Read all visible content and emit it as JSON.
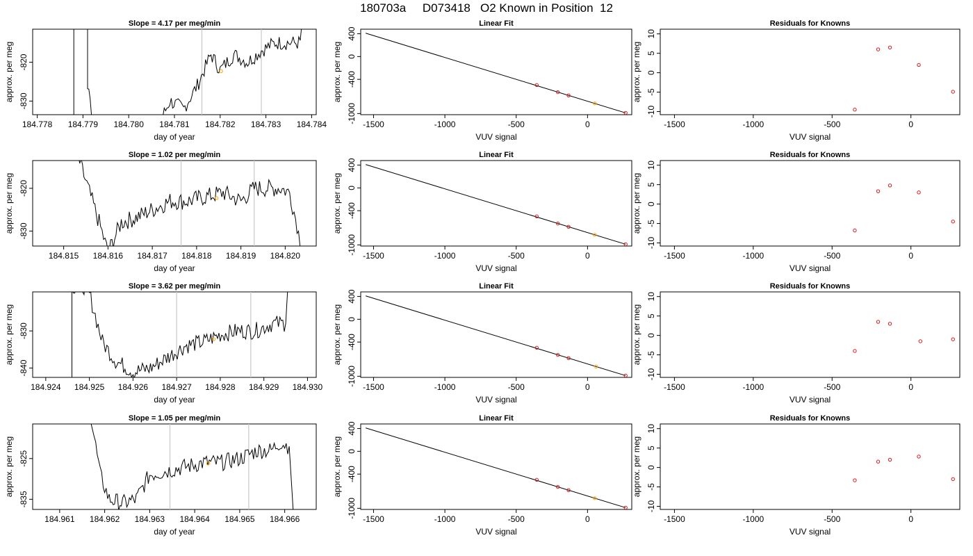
{
  "title": "180703a     D073418   O2 Known in Position  12",
  "chart_data": [
    {
      "type": "line",
      "panel": "time-series",
      "row": 1,
      "title": "Slope =  4.17  per meg/min",
      "xlabel": "day of year",
      "ylabel": "approx. per meg",
      "xlim": [
        184.7779,
        184.7841
      ],
      "ylim": [
        -833.5,
        -811.5
      ],
      "xticks": [
        "184.778",
        "184.779",
        "184.780",
        "184.781",
        "184.782",
        "184.783",
        "184.784"
      ],
      "yticks": [
        "-820",
        "-830"
      ],
      "vlines": [
        184.7816,
        184.7829
      ],
      "marker": {
        "x": 184.78202,
        "y": -822.3,
        "color": "#ffa500"
      },
      "trace_x": [
        184.7788,
        184.7788,
        184.7791,
        184.7791,
        184.7793,
        184.7805,
        184.7809,
        184.7812,
        184.7815,
        184.7818,
        184.782,
        184.7823,
        184.7826,
        184.7829,
        184.7832,
        184.7835,
        184.78375,
        184.7838
      ],
      "trace_y": [
        -840,
        -808,
        -808,
        -826,
        -840,
        -840,
        -830,
        -832,
        -826,
        -818,
        -822,
        -818,
        -820,
        -817,
        -815,
        -815,
        -815,
        -808
      ],
      "noise": 1.2
    },
    {
      "type": "line",
      "panel": "fit",
      "row": 1,
      "title": "Linear Fit",
      "xlabel": "VUV signal",
      "ylabel": "approx. per meg",
      "xlim": [
        -1590,
        310
      ],
      "ylim": [
        -1020,
        480
      ],
      "xticks": [
        -1500,
        -1000,
        -500,
        0
      ],
      "yticks": [
        400,
        0,
        -400,
        -1000
      ],
      "line": {
        "x": [
          -1555,
          267
        ],
        "y": [
          410,
          -989
        ]
      },
      "points": {
        "x": [
          -356,
          -208,
          -133,
          50,
          267
        ],
        "y": [
          -500,
          -625,
          -682,
          -822,
          -989
        ]
      },
      "highlight_index": 3
    },
    {
      "type": "scatter",
      "panel": "residuals",
      "row": 1,
      "title": "Residuals for Knowns",
      "xlabel": "VUV signal",
      "ylabel": "approx. per meg",
      "xlim": [
        -1590,
        310
      ],
      "ylim": [
        -10.8,
        11.2
      ],
      "xticks": [
        -1500,
        -1000,
        -500,
        0
      ],
      "yticks": [
        10,
        5,
        0,
        -5,
        -10
      ],
      "points": {
        "x": [
          -356,
          -208,
          -133,
          50,
          267
        ],
        "y": [
          -9.5,
          6.0,
          6.5,
          2.0,
          -4.9
        ]
      }
    },
    {
      "type": "line",
      "panel": "time-series",
      "row": 2,
      "title": "Slope =  1.02  per meg/min",
      "xlabel": "day of year",
      "ylabel": "approx. per meg",
      "xlim": [
        184.8143,
        184.8207
      ],
      "ylim": [
        -833.5,
        -813.5
      ],
      "xticks": [
        "184.815",
        "184.816",
        "184.817",
        "184.818",
        "184.819",
        "184.820"
      ],
      "yticks": [
        "-820",
        "-830"
      ],
      "vlines": [
        184.81765,
        184.8193
      ],
      "marker": {
        "x": 184.81845,
        "y": -822.3,
        "color": "#ffa500"
      },
      "trace_x": [
        184.8153,
        184.8158,
        184.816,
        184.8163,
        184.8166,
        184.817,
        184.8174,
        184.8178,
        184.8182,
        184.8186,
        184.819,
        184.8193,
        184.8196,
        184.8199,
        184.8201,
        184.8203,
        184.8204
      ],
      "trace_y": [
        -812,
        -828,
        -835,
        -828,
        -827,
        -825,
        -823,
        -823,
        -822,
        -821,
        -823,
        -820,
        -820,
        -820,
        -821,
        -830,
        -840
      ],
      "noise": 1.3
    },
    {
      "type": "line",
      "panel": "fit",
      "row": 2,
      "title": "Linear Fit",
      "xlabel": "VUV signal",
      "ylabel": "approx. per meg",
      "xlim": [
        -1590,
        310
      ],
      "ylim": [
        -1020,
        480
      ],
      "xticks": [
        -1500,
        -1000,
        -500,
        0
      ],
      "yticks": [
        400,
        0,
        -400,
        -1000
      ],
      "line": {
        "x": [
          -1555,
          267
        ],
        "y": [
          410,
          -989
        ]
      },
      "points": {
        "x": [
          -356,
          -208,
          -133,
          50,
          267
        ],
        "y": [
          -500,
          -625,
          -682,
          -822,
          -989
        ]
      },
      "highlight_index": 3
    },
    {
      "type": "scatter",
      "panel": "residuals",
      "row": 2,
      "title": "Residuals for Knowns",
      "xlabel": "VUV signal",
      "ylabel": "approx. per meg",
      "xlim": [
        -1590,
        310
      ],
      "ylim": [
        -10.8,
        11.2
      ],
      "xticks": [
        -1500,
        -1000,
        -500,
        0
      ],
      "yticks": [
        10,
        5,
        0,
        -5,
        -10
      ],
      "points": {
        "x": [
          -356,
          -208,
          -133,
          50,
          267
        ],
        "y": [
          -6.8,
          3.3,
          4.8,
          3.0,
          -4.5
        ]
      }
    },
    {
      "type": "line",
      "panel": "time-series",
      "row": 3,
      "title": "Slope =  3.62  per meg/min",
      "xlabel": "day of year",
      "ylabel": "approx. per meg",
      "xlim": [
        184.9237,
        184.9302
      ],
      "ylim": [
        -842.5,
        -819.5
      ],
      "xticks": [
        "184.924",
        "184.925",
        "184.926",
        "184.927",
        "184.928",
        "184.929",
        "184.930"
      ],
      "yticks": [
        "-830",
        "-840"
      ],
      "vlines": [
        184.927,
        184.9287
      ],
      "marker": {
        "x": 184.92785,
        "y": -832.2,
        "color": "#ffa500"
      },
      "trace_x": [
        184.9246,
        184.9246,
        184.925,
        184.925,
        184.9253,
        184.9256,
        184.926,
        184.9264,
        184.9268,
        184.9272,
        184.9276,
        184.928,
        184.9284,
        184.9288,
        184.9292,
        184.9295,
        184.92955
      ],
      "trace_y": [
        -845,
        -818,
        -818,
        -820,
        -833,
        -838,
        -841,
        -840,
        -837,
        -834,
        -833,
        -831,
        -830,
        -830,
        -828,
        -828,
        -818
      ],
      "noise": 1.4
    },
    {
      "type": "line",
      "panel": "fit",
      "row": 3,
      "title": "Linear Fit",
      "xlabel": "VUV signal",
      "ylabel": "approx. per meg",
      "xlim": [
        -1590,
        310
      ],
      "ylim": [
        -1020,
        480
      ],
      "xticks": [
        -1500,
        -1000,
        -500,
        0
      ],
      "yticks": [
        400,
        0,
        -400,
        -1000
      ],
      "line": {
        "x": [
          -1555,
          267
        ],
        "y": [
          410,
          -989
        ]
      },
      "points": {
        "x": [
          -356,
          -208,
          -133,
          60,
          267
        ],
        "y": [
          -500,
          -625,
          -682,
          -830,
          -989
        ]
      },
      "highlight_index": 3
    },
    {
      "type": "scatter",
      "panel": "residuals",
      "row": 3,
      "title": "Residuals for Knowns",
      "xlabel": "VUV signal",
      "ylabel": "approx. per meg",
      "xlim": [
        -1590,
        310
      ],
      "ylim": [
        -10.8,
        11.2
      ],
      "xticks": [
        -1500,
        -1000,
        -500,
        0
      ],
      "yticks": [
        10,
        5,
        0,
        -5,
        -10
      ],
      "points": {
        "x": [
          -356,
          -208,
          -133,
          60,
          267
        ],
        "y": [
          -4.0,
          3.5,
          3.0,
          -1.5,
          -1.0
        ]
      }
    },
    {
      "type": "line",
      "panel": "time-series",
      "row": 4,
      "title": "Slope =  1.05  per meg/min",
      "xlabel": "day of year",
      "ylabel": "approx. per meg",
      "xlim": [
        184.9604,
        184.9667
      ],
      "ylim": [
        -837.5,
        -816.5
      ],
      "xticks": [
        "184.961",
        "184.962",
        "184.963",
        "184.964",
        "184.965",
        "184.966"
      ],
      "yticks": [
        "-825",
        "-835"
      ],
      "vlines": [
        184.96345,
        184.9652
      ],
      "marker": {
        "x": 184.9643,
        "y": -826.2,
        "color": "#ffa500"
      },
      "trace_x": [
        184.9617,
        184.9619,
        184.9621,
        184.9624,
        184.9627,
        184.963,
        184.9634,
        184.9638,
        184.9642,
        184.9646,
        184.965,
        184.9654,
        184.9657,
        184.9659,
        184.9661,
        184.9662
      ],
      "trace_y": [
        -815,
        -829,
        -835,
        -836,
        -835,
        -829,
        -828,
        -827,
        -826,
        -826,
        -825,
        -823,
        -823,
        -821,
        -822,
        -840
      ],
      "noise": 1.3
    },
    {
      "type": "line",
      "panel": "fit",
      "row": 4,
      "title": "Linear Fit",
      "xlabel": "VUV signal",
      "ylabel": "approx. per meg",
      "xlim": [
        -1590,
        310
      ],
      "ylim": [
        -1020,
        480
      ],
      "xticks": [
        -1500,
        -1000,
        -500,
        0
      ],
      "yticks": [
        400,
        0,
        -400,
        -1000
      ],
      "line": {
        "x": [
          -1555,
          267
        ],
        "y": [
          410,
          -989
        ]
      },
      "points": {
        "x": [
          -356,
          -208,
          -133,
          50,
          267
        ],
        "y": [
          -500,
          -625,
          -682,
          -822,
          -989
        ]
      },
      "highlight_index": 3
    },
    {
      "type": "scatter",
      "panel": "residuals",
      "row": 4,
      "title": "Residuals for Knowns",
      "xlabel": "VUV signal",
      "ylabel": "approx. per meg",
      "xlim": [
        -1590,
        310
      ],
      "ylim": [
        -10.8,
        11.2
      ],
      "xticks": [
        -1500,
        -1000,
        -500,
        0
      ],
      "yticks": [
        10,
        5,
        0,
        -5,
        -10
      ],
      "points": {
        "x": [
          -356,
          -208,
          -133,
          50,
          267
        ],
        "y": [
          -3.3,
          1.5,
          2.0,
          2.8,
          -3.0
        ]
      }
    }
  ],
  "colors": {
    "axis": "#000000",
    "trace": "#000000",
    "vline": "#c8c8c8",
    "point": "#d7191c",
    "highlight": "#ffa500"
  }
}
